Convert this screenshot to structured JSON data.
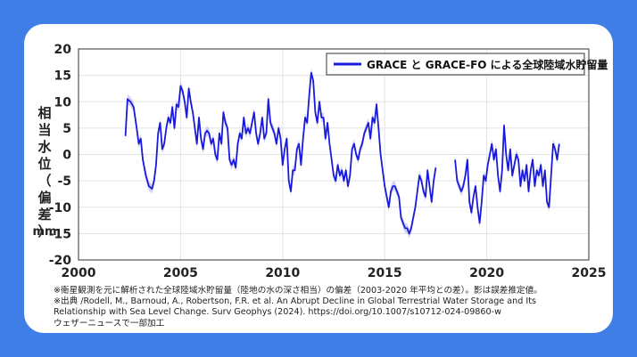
{
  "chart_data": {
    "type": "line",
    "title": "",
    "xlabel": "",
    "ylabel": "相当水位（偏差）",
    "yunit": "mm",
    "xlim": [
      2000,
      2025
    ],
    "ylim": [
      -20,
      20
    ],
    "xticks": [
      2000,
      2005,
      2010,
      2015,
      2020,
      2025
    ],
    "yticks": [
      -20,
      -15,
      -10,
      -5,
      0,
      5,
      10,
      15,
      20
    ],
    "grid": true,
    "legend_position": "top-right",
    "series": [
      {
        "name": "GRACE と GRACE-FO による全球陸域水貯留量",
        "color": "#1a1adb",
        "uncertainty_color": "#a9adf2",
        "segments": [
          [
            [
              2002.3,
              3.5
            ],
            [
              2002.4,
              10.5
            ],
            [
              2002.55,
              10
            ],
            [
              2002.7,
              9
            ],
            [
              2002.85,
              5
            ],
            [
              2002.95,
              2
            ],
            [
              2003.05,
              3
            ],
            [
              2003.15,
              -1
            ],
            [
              2003.3,
              -4
            ],
            [
              2003.45,
              -6
            ],
            [
              2003.6,
              -6.5
            ],
            [
              2003.7,
              -5
            ],
            [
              2003.8,
              -2
            ],
            [
              2003.9,
              4
            ],
            [
              2004.0,
              6
            ],
            [
              2004.1,
              1
            ],
            [
              2004.2,
              2
            ],
            [
              2004.3,
              5
            ],
            [
              2004.4,
              7
            ],
            [
              2004.5,
              6
            ],
            [
              2004.6,
              9
            ],
            [
              2004.7,
              5
            ],
            [
              2004.8,
              9.5
            ],
            [
              2004.9,
              9
            ],
            [
              2005.0,
              13
            ],
            [
              2005.1,
              12
            ],
            [
              2005.2,
              10
            ],
            [
              2005.3,
              7
            ],
            [
              2005.4,
              12.5
            ],
            [
              2005.5,
              10
            ],
            [
              2005.6,
              8
            ],
            [
              2005.7,
              5
            ],
            [
              2005.8,
              2
            ],
            [
              2005.9,
              7
            ],
            [
              2006.0,
              3
            ],
            [
              2006.1,
              1
            ],
            [
              2006.2,
              4
            ],
            [
              2006.3,
              4.5
            ],
            [
              2006.4,
              4
            ],
            [
              2006.5,
              2
            ],
            [
              2006.6,
              3
            ],
            [
              2006.7,
              0
            ],
            [
              2006.8,
              -1
            ],
            [
              2006.9,
              4
            ],
            [
              2007.0,
              2
            ],
            [
              2007.1,
              8
            ],
            [
              2007.2,
              6
            ],
            [
              2007.3,
              5
            ],
            [
              2007.4,
              -1
            ],
            [
              2007.5,
              -2
            ],
            [
              2007.6,
              -1
            ],
            [
              2007.7,
              -2.5
            ],
            [
              2007.8,
              2
            ],
            [
              2007.9,
              4
            ],
            [
              2008.0,
              3
            ],
            [
              2008.1,
              7
            ],
            [
              2008.2,
              4
            ],
            [
              2008.3,
              5
            ],
            [
              2008.4,
              4
            ],
            [
              2008.5,
              6
            ],
            [
              2008.6,
              8
            ],
            [
              2008.7,
              4
            ],
            [
              2008.8,
              2
            ],
            [
              2008.9,
              4
            ],
            [
              2009.0,
              7
            ],
            [
              2009.1,
              3
            ],
            [
              2009.2,
              4
            ],
            [
              2009.3,
              10.5
            ],
            [
              2009.4,
              6
            ],
            [
              2009.5,
              5
            ],
            [
              2009.6,
              4
            ],
            [
              2009.7,
              2
            ],
            [
              2009.8,
              5
            ],
            [
              2009.9,
              3
            ],
            [
              2010.0,
              -2
            ],
            [
              2010.1,
              1
            ],
            [
              2010.2,
              3
            ],
            [
              2010.3,
              -5
            ],
            [
              2010.4,
              -7
            ],
            [
              2010.5,
              -3
            ],
            [
              2010.6,
              -3
            ],
            [
              2010.7,
              1
            ],
            [
              2010.8,
              2
            ],
            [
              2010.9,
              -2
            ],
            [
              2011.0,
              3
            ],
            [
              2011.1,
              7
            ],
            [
              2011.2,
              6
            ],
            [
              2011.3,
              11
            ],
            [
              2011.4,
              15.5
            ],
            [
              2011.5,
              14
            ],
            [
              2011.6,
              8
            ],
            [
              2011.7,
              6
            ],
            [
              2011.8,
              10
            ],
            [
              2011.9,
              7
            ],
            [
              2012.0,
              7
            ],
            [
              2012.1,
              3
            ],
            [
              2012.2,
              6
            ],
            [
              2012.3,
              2
            ],
            [
              2012.4,
              -1
            ],
            [
              2012.5,
              -4
            ],
            [
              2012.6,
              -5
            ],
            [
              2012.7,
              -2
            ],
            [
              2012.8,
              -4
            ],
            [
              2012.9,
              -3
            ],
            [
              2013.0,
              -5
            ],
            [
              2013.1,
              -3
            ],
            [
              2013.2,
              -6
            ],
            [
              2013.3,
              -4
            ],
            [
              2013.4,
              1
            ],
            [
              2013.5,
              2
            ],
            [
              2013.6,
              0
            ],
            [
              2013.7,
              -1
            ],
            [
              2013.8,
              1
            ],
            [
              2013.9,
              2
            ],
            [
              2014.0,
              4
            ],
            [
              2014.1,
              5
            ],
            [
              2014.2,
              6
            ],
            [
              2014.3,
              3
            ],
            [
              2014.4,
              7
            ],
            [
              2014.5,
              6
            ],
            [
              2014.6,
              9.5
            ],
            [
              2014.7,
              5
            ],
            [
              2014.8,
              0
            ],
            [
              2014.9,
              -3
            ],
            [
              2015.0,
              -6
            ],
            [
              2015.1,
              -8
            ],
            [
              2015.2,
              -10
            ],
            [
              2015.3,
              -7
            ],
            [
              2015.4,
              -6
            ],
            [
              2015.5,
              -6
            ],
            [
              2015.6,
              -7
            ],
            [
              2015.7,
              -8
            ],
            [
              2015.8,
              -12
            ],
            [
              2015.9,
              -13
            ],
            [
              2016.0,
              -14
            ],
            [
              2016.1,
              -14
            ],
            [
              2016.2,
              -15
            ],
            [
              2016.3,
              -14
            ],
            [
              2016.4,
              -12
            ],
            [
              2016.5,
              -10
            ],
            [
              2016.6,
              -7
            ],
            [
              2016.7,
              -4
            ],
            [
              2016.8,
              -5
            ],
            [
              2016.9,
              -7
            ],
            [
              2017.0,
              -8
            ],
            [
              2017.1,
              -3
            ],
            [
              2017.2,
              -6
            ],
            [
              2017.3,
              -9
            ],
            [
              2017.4,
              -5
            ],
            [
              2017.5,
              -2.5
            ]
          ],
          [
            [
              2018.45,
              -1
            ],
            [
              2018.55,
              -5
            ],
            [
              2018.65,
              -6
            ],
            [
              2018.75,
              -7
            ],
            [
              2018.85,
              -6
            ],
            [
              2018.95,
              -4
            ],
            [
              2019.05,
              -1
            ],
            [
              2019.15,
              -9
            ],
            [
              2019.25,
              -11
            ],
            [
              2019.35,
              -8
            ],
            [
              2019.45,
              -6
            ],
            [
              2019.55,
              -10
            ],
            [
              2019.65,
              -13
            ],
            [
              2019.75,
              -9
            ],
            [
              2019.85,
              -4
            ],
            [
              2019.95,
              -5
            ],
            [
              2020.05,
              -2
            ],
            [
              2020.15,
              0
            ],
            [
              2020.25,
              2
            ],
            [
              2020.35,
              -1
            ],
            [
              2020.45,
              1
            ],
            [
              2020.55,
              -4
            ],
            [
              2020.65,
              -7
            ],
            [
              2020.75,
              -3
            ],
            [
              2020.85,
              5.5
            ],
            [
              2020.95,
              0
            ],
            [
              2021.05,
              -3
            ],
            [
              2021.15,
              1
            ],
            [
              2021.25,
              -4
            ],
            [
              2021.35,
              -2
            ],
            [
              2021.45,
              0
            ],
            [
              2021.55,
              -1
            ],
            [
              2021.65,
              -6
            ],
            [
              2021.75,
              -3
            ],
            [
              2021.85,
              -5
            ],
            [
              2021.95,
              -2
            ],
            [
              2022.05,
              -7
            ],
            [
              2022.15,
              -3
            ],
            [
              2022.25,
              -1
            ],
            [
              2022.35,
              -6
            ],
            [
              2022.45,
              -3
            ],
            [
              2022.55,
              -4
            ],
            [
              2022.65,
              -2
            ],
            [
              2022.75,
              -6
            ],
            [
              2022.85,
              -3
            ],
            [
              2022.95,
              -9
            ],
            [
              2023.05,
              -10
            ],
            [
              2023.15,
              -4
            ],
            [
              2023.25,
              2
            ],
            [
              2023.35,
              1
            ],
            [
              2023.45,
              -1
            ],
            [
              2023.55,
              2
            ]
          ]
        ]
      }
    ]
  },
  "footnotes": [
    "※衛星観測を元に解析された全球陸域水貯留量（陸地の水の深さ相当）の偏差（2003-2020 年平均との差）。影は誤差推定値。",
    "※出典 /Rodell, M., Barnoud, A., Robertson, F.R. et al. An Abrupt Decline in Global Terrestrial Water Storage and Its",
    "Relationship with Sea Level Change. Surv Geophys (2024). https://doi.org/10.1007/s10712-024-09860-w",
    "ウェザーニュースで一部加工"
  ]
}
